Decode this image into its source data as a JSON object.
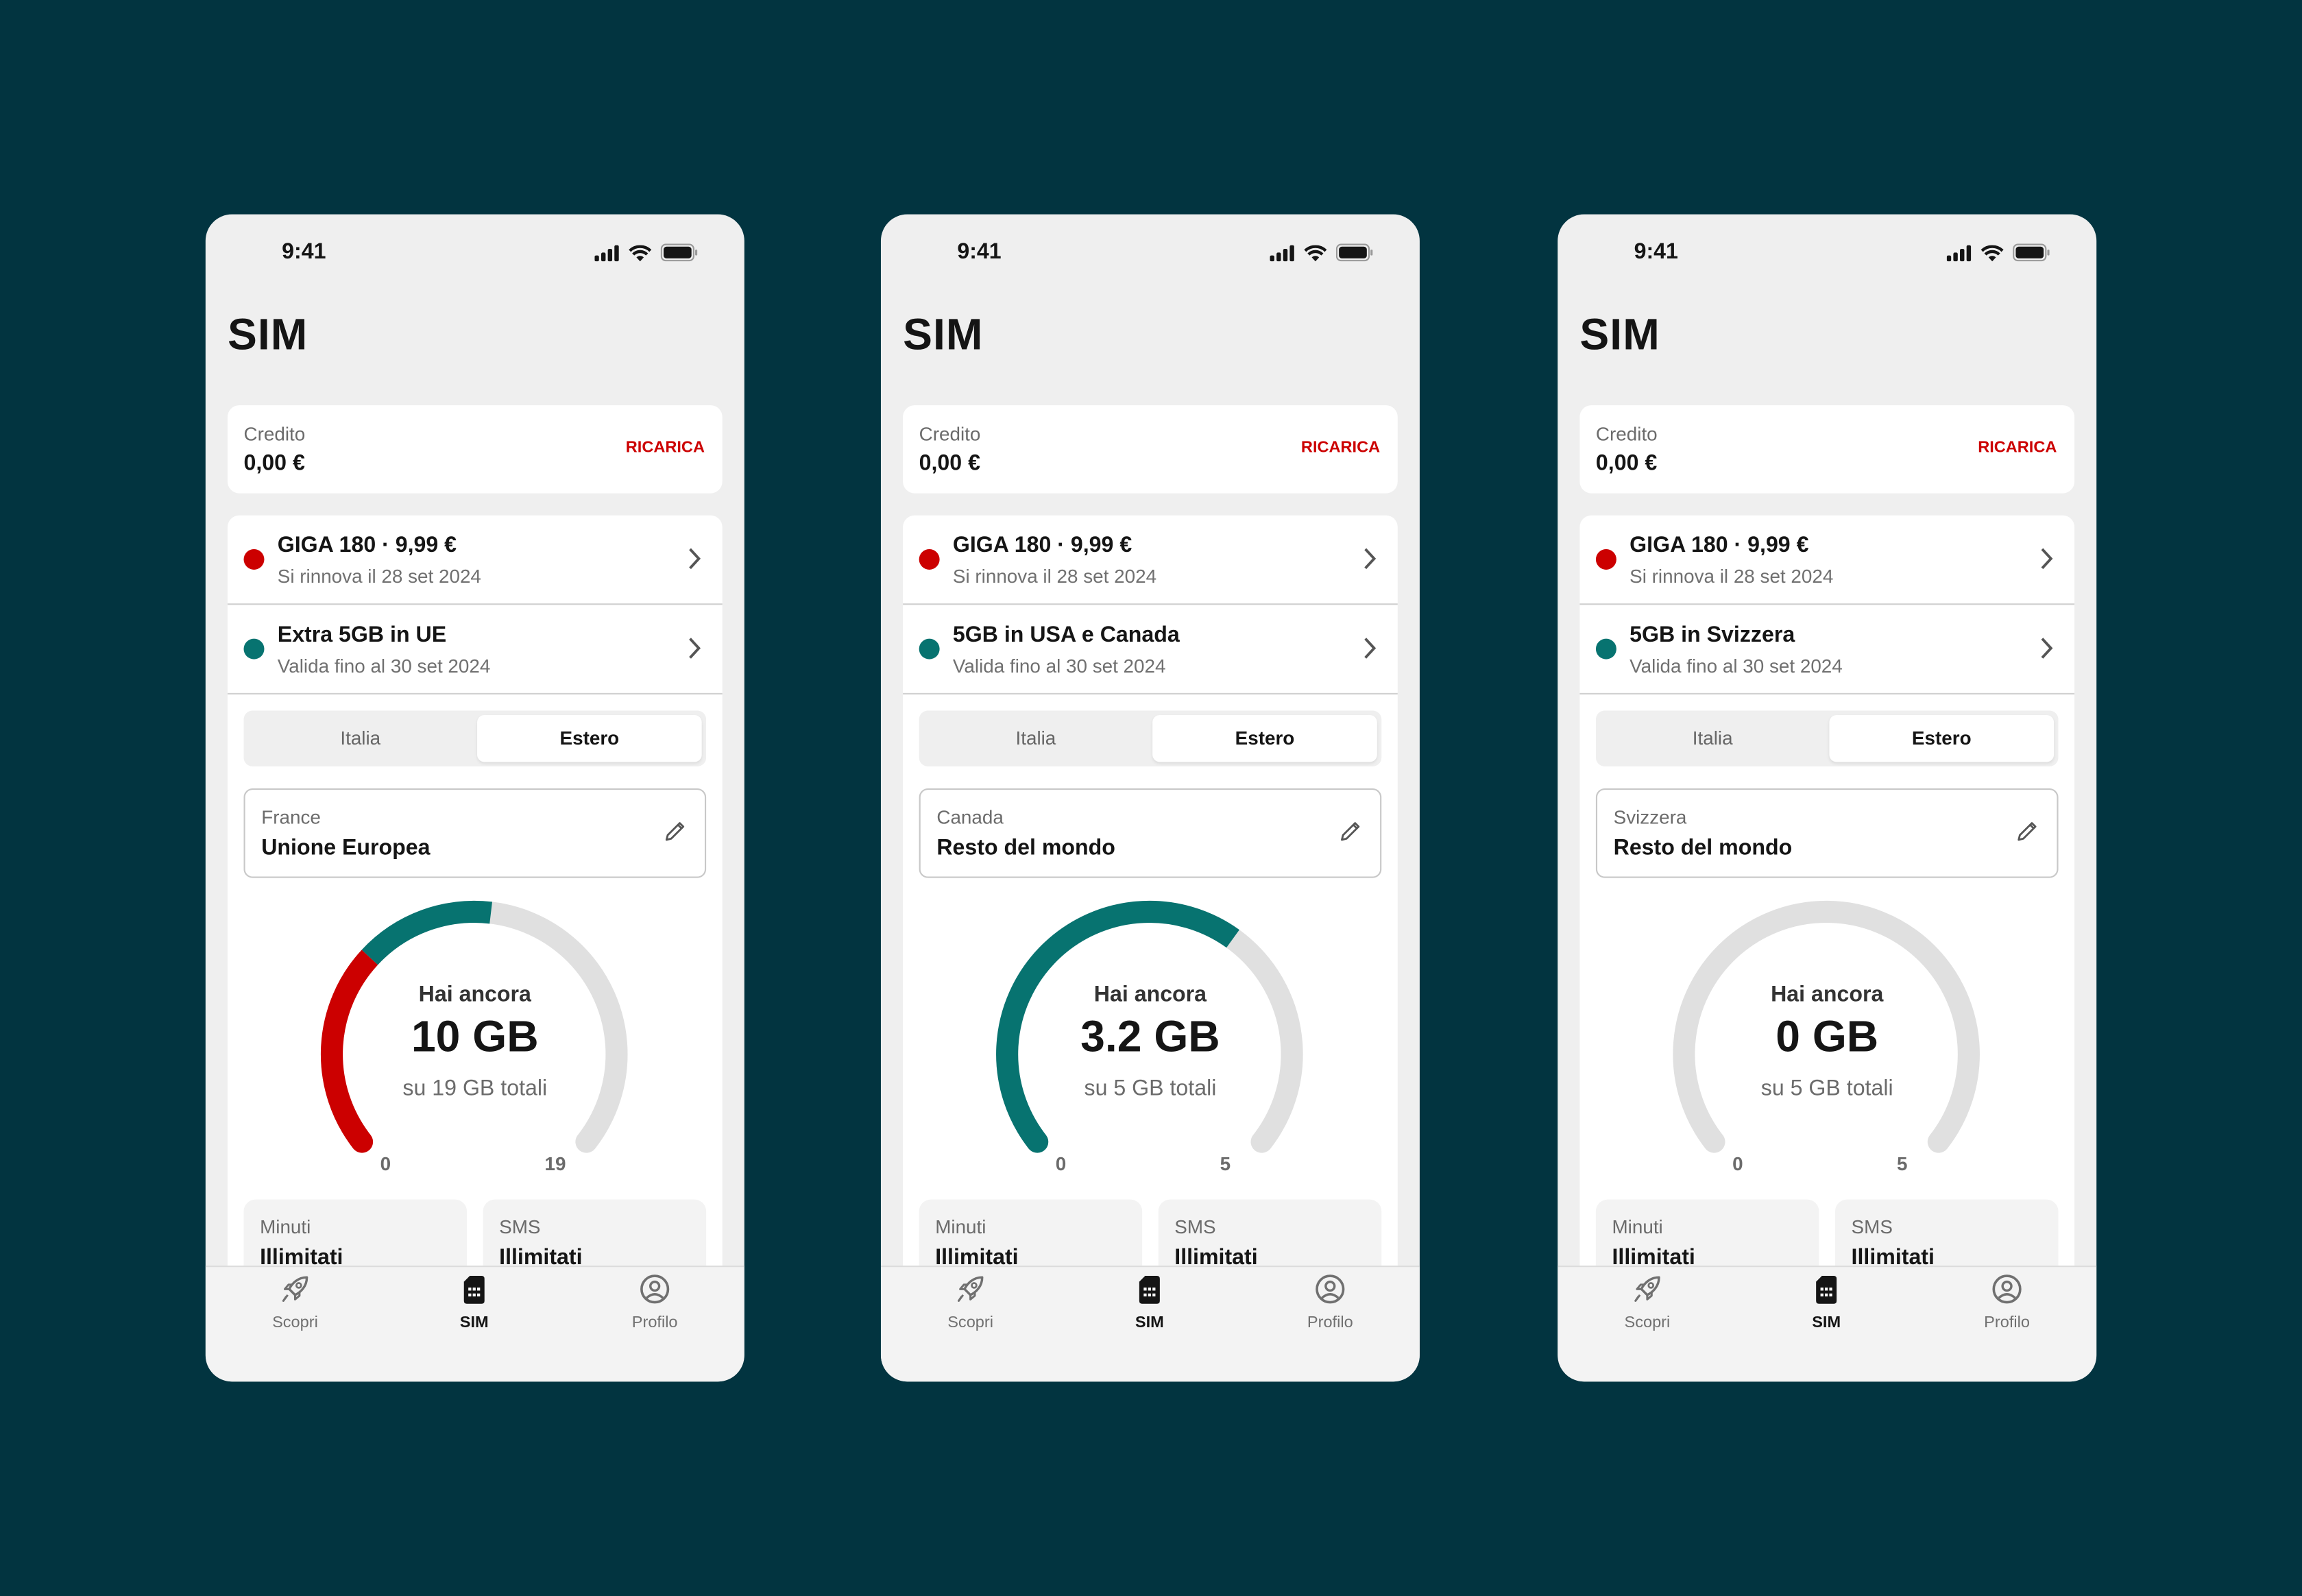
{
  "colors": {
    "background": "#023440",
    "accent_red": "#cc0000",
    "accent_teal": "#077370",
    "track": "#e0e0e0"
  },
  "phones": [
    {
      "time": "9:41",
      "title": "SIM",
      "credit": {
        "label": "Credito",
        "value": "0,00 €",
        "action": "RICARICA"
      },
      "plans": [
        {
          "name": "GIGA 180 · 9,99 €",
          "detail": "Si rinnova il 28 set 2024",
          "color": "#cc0000"
        },
        {
          "name": "Extra 5GB in UE",
          "detail": "Valida fino al 30 set 2024",
          "color": "#077370"
        }
      ],
      "tabs": {
        "italia": "Italia",
        "estero": "Estero",
        "selected": "Estero"
      },
      "country": {
        "label": "France",
        "value": "Unione Europea"
      },
      "gauge": {
        "title": "Hai ancora",
        "remaining": "10 GB",
        "total_text": "su 19 GB totali",
        "min": "0",
        "max": "19",
        "max_value": 19,
        "segments": [
          {
            "value": 6,
            "color": "#cc0000"
          },
          {
            "value": 4,
            "color": "#077370"
          }
        ]
      },
      "minutes": {
        "label": "Minuti",
        "value": "Illimitati"
      },
      "sms": {
        "label": "SMS",
        "value": "Illimitati"
      },
      "nav": [
        {
          "label": "Scopri",
          "icon": "rocket-icon"
        },
        {
          "label": "SIM",
          "icon": "sim-card-icon",
          "active": true
        },
        {
          "label": "Profilo",
          "icon": "profile-icon"
        }
      ]
    },
    {
      "time": "9:41",
      "title": "SIM",
      "credit": {
        "label": "Credito",
        "value": "0,00 €",
        "action": "RICARICA"
      },
      "plans": [
        {
          "name": "GIGA 180 · 9,99 €",
          "detail": "Si rinnova il 28 set 2024",
          "color": "#cc0000"
        },
        {
          "name": "5GB in USA e Canada",
          "detail": "Valida fino al 30 set 2024",
          "color": "#077370"
        }
      ],
      "tabs": {
        "italia": "Italia",
        "estero": "Estero",
        "selected": "Estero"
      },
      "country": {
        "label": "Canada",
        "value": "Resto del mondo"
      },
      "gauge": {
        "title": "Hai ancora",
        "remaining": "3.2 GB",
        "total_text": "su 5 GB totali",
        "min": "0",
        "max": "5",
        "max_value": 5,
        "segments": [
          {
            "value": 3.2,
            "color": "#077370"
          }
        ]
      },
      "minutes": {
        "label": "Minuti",
        "value": "Illimitati"
      },
      "sms": {
        "label": "SMS",
        "value": "Illimitati"
      },
      "nav": [
        {
          "label": "Scopri",
          "icon": "rocket-icon"
        },
        {
          "label": "SIM",
          "icon": "sim-card-icon",
          "active": true
        },
        {
          "label": "Profilo",
          "icon": "profile-icon"
        }
      ]
    },
    {
      "time": "9:41",
      "title": "SIM",
      "credit": {
        "label": "Credito",
        "value": "0,00 €",
        "action": "RICARICA"
      },
      "plans": [
        {
          "name": "GIGA 180 · 9,99 €",
          "detail": "Si rinnova il 28 set 2024",
          "color": "#cc0000"
        },
        {
          "name": "5GB in Svizzera",
          "detail": "Valida fino al 30 set 2024",
          "color": "#077370"
        }
      ],
      "tabs": {
        "italia": "Italia",
        "estero": "Estero",
        "selected": "Estero"
      },
      "country": {
        "label": "Svizzera",
        "value": "Resto del mondo"
      },
      "gauge": {
        "title": "Hai ancora",
        "remaining": "0 GB",
        "total_text": "su 5 GB totali",
        "min": "0",
        "max": "5",
        "max_value": 5,
        "segments": []
      },
      "minutes": {
        "label": "Minuti",
        "value": "Illimitati"
      },
      "sms": {
        "label": "SMS",
        "value": "Illimitati"
      },
      "nav": [
        {
          "label": "Scopri",
          "icon": "rocket-icon"
        },
        {
          "label": "SIM",
          "icon": "sim-card-icon",
          "active": true
        },
        {
          "label": "Profilo",
          "icon": "profile-icon"
        }
      ]
    }
  ]
}
